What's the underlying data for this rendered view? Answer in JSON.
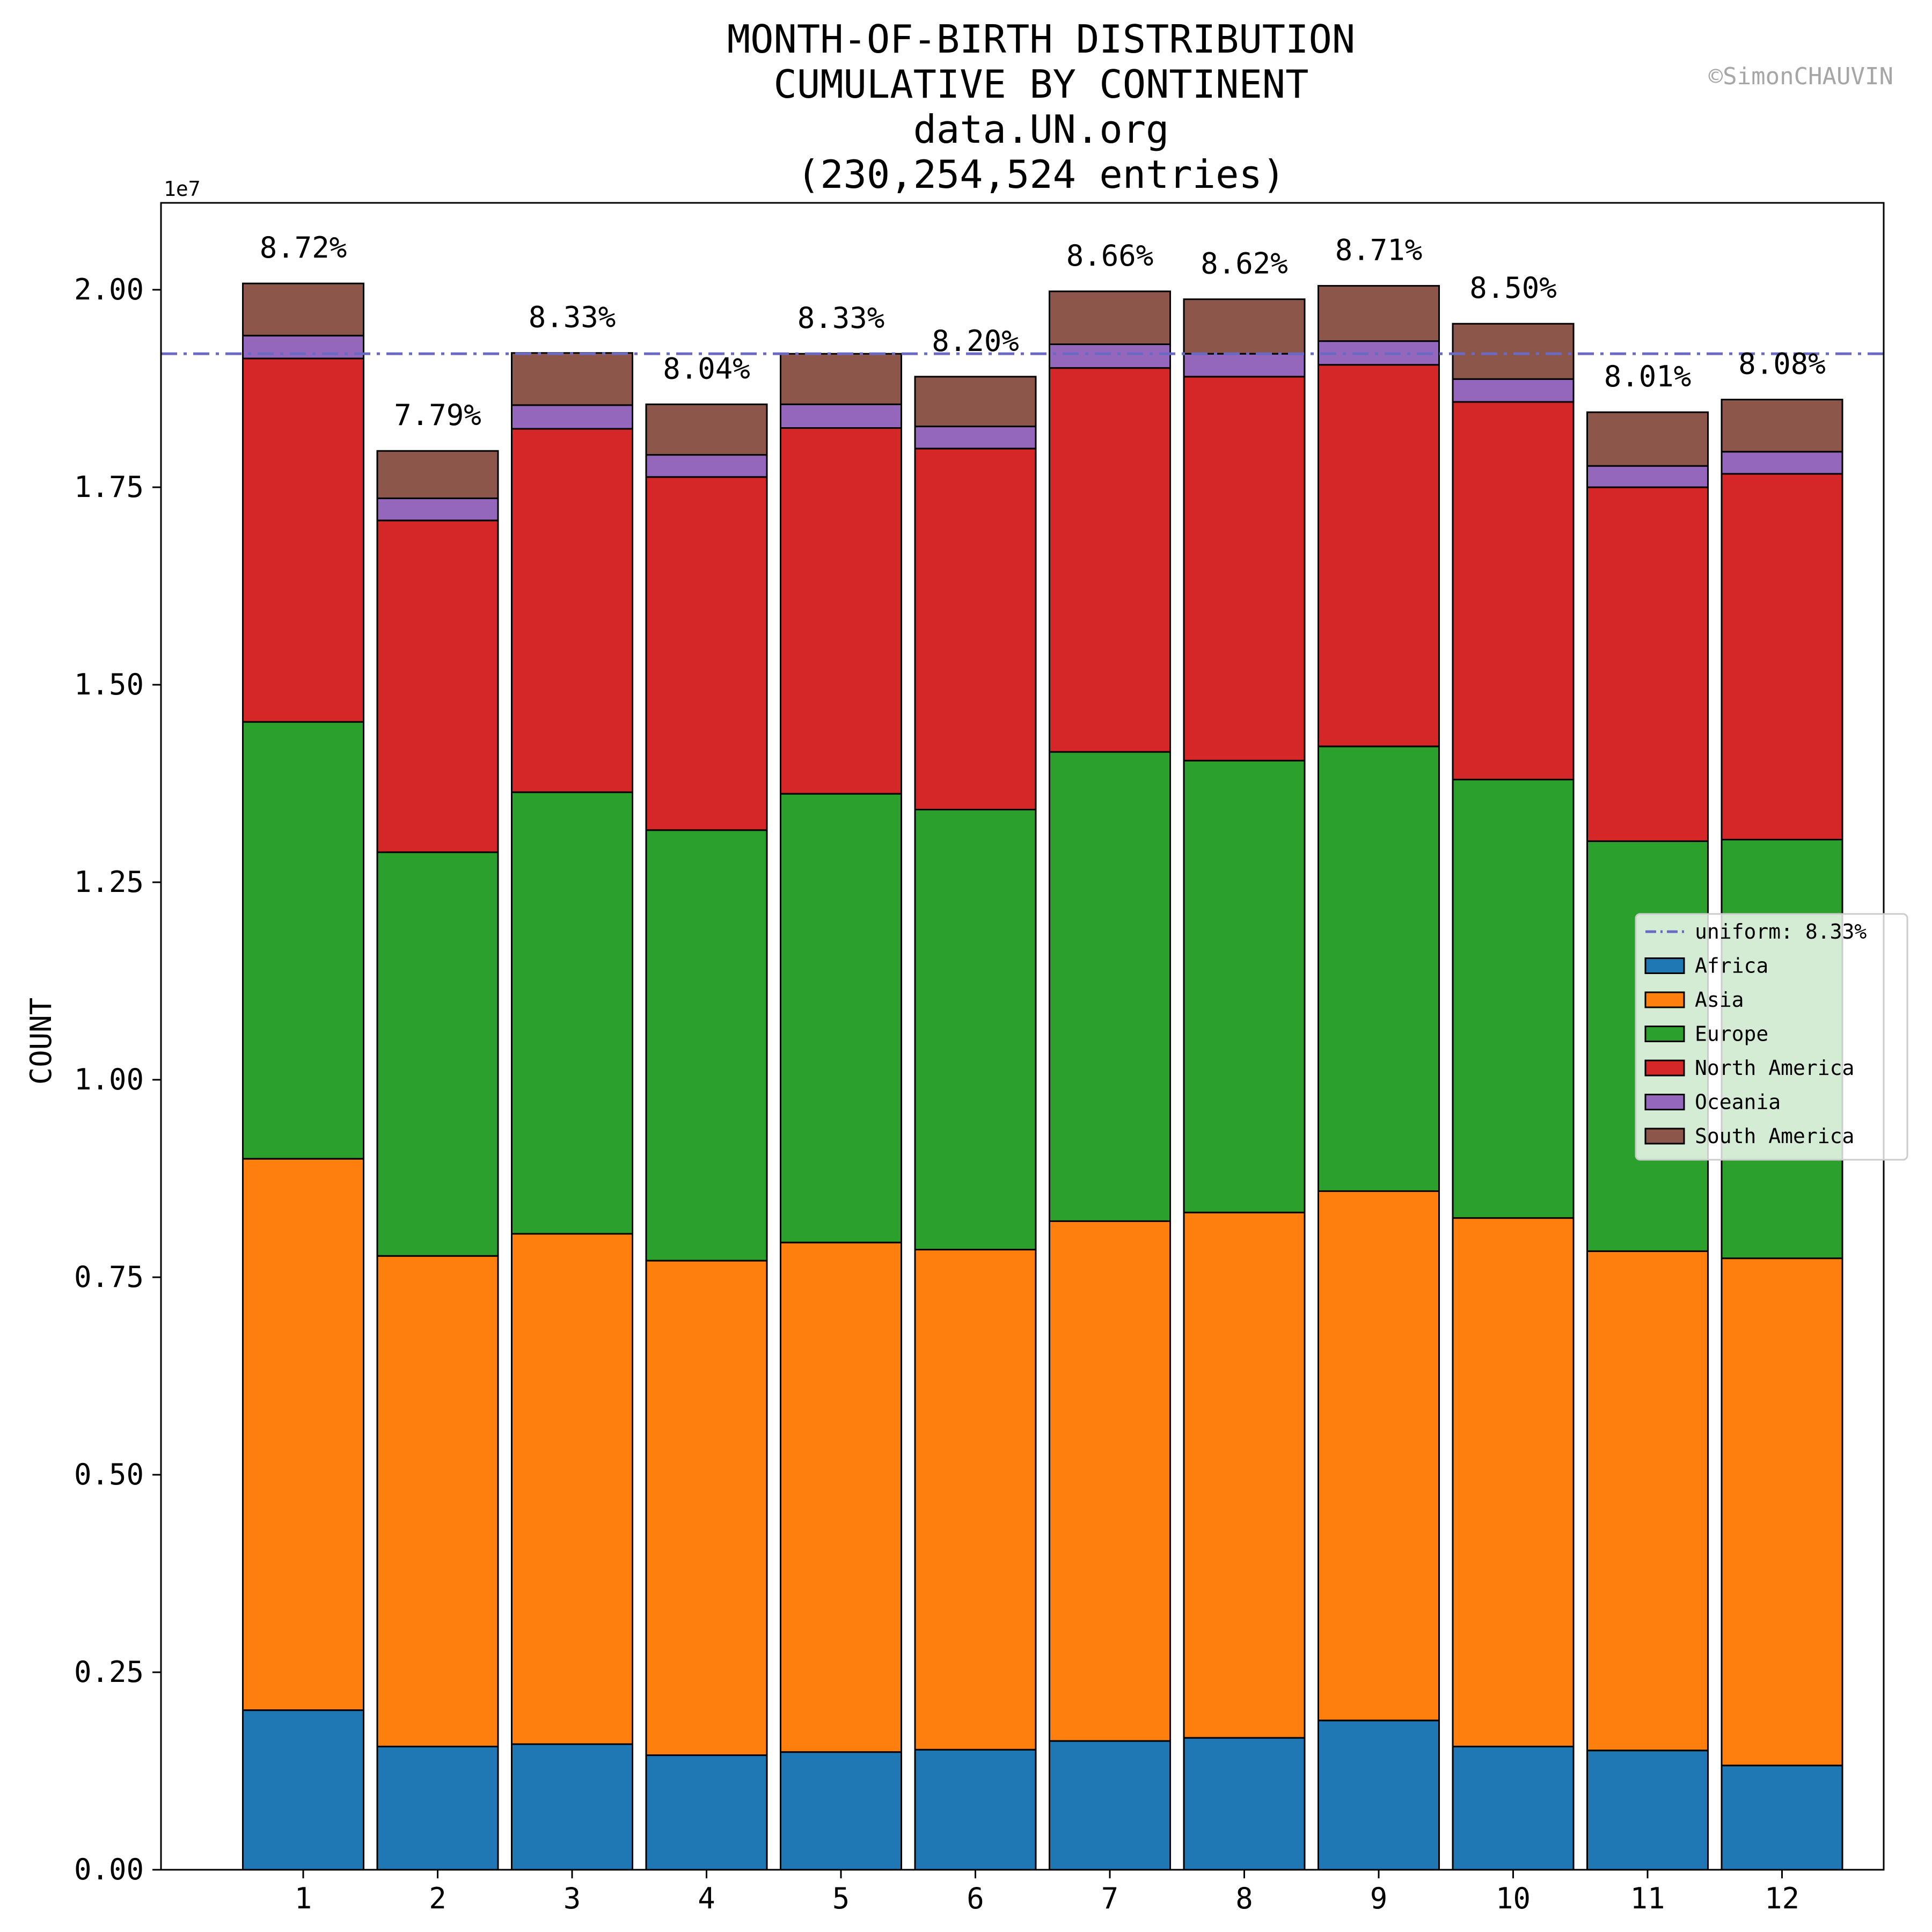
{
  "chart_data": {
    "type": "bar",
    "stacked": true,
    "title_lines": [
      "MONTH-OF-BIRTH DISTRIBUTION",
      "CUMULATIVE BY CONTINENT",
      "data.UN.org",
      "(230,254,524 entries)"
    ],
    "credit": "©SimonCHAUVIN",
    "ylabel": "COUNT",
    "xlabel": "",
    "y_offset_label": "1e7",
    "ylim": [
      0,
      21100000
    ],
    "yticks": [
      0,
      2500000,
      5000000,
      7500000,
      10000000,
      12500000,
      15000000,
      17500000,
      20000000
    ],
    "ytick_labels": [
      "0.00",
      "0.25",
      "0.50",
      "0.75",
      "1.00",
      "1.25",
      "1.50",
      "1.75",
      "2.00"
    ],
    "categories": [
      "1",
      "2",
      "3",
      "4",
      "5",
      "6",
      "7",
      "8",
      "9",
      "10",
      "11",
      "12"
    ],
    "series": [
      {
        "name": "Africa",
        "color": "#1f77b4",
        "values": [
          2020000,
          1560000,
          1590000,
          1450000,
          1490000,
          1520000,
          1630000,
          1670000,
          1890000,
          1560000,
          1510000,
          1320000
        ]
      },
      {
        "name": "Asia",
        "color": "#ff7f0e",
        "values": [
          6980000,
          6210000,
          6460000,
          6260000,
          6450000,
          6330000,
          6580000,
          6650000,
          6700000,
          6690000,
          6320000,
          6420000
        ]
      },
      {
        "name": "Europe",
        "color": "#2ca02c",
        "values": [
          5530000,
          5110000,
          5590000,
          5450000,
          5680000,
          5570000,
          5940000,
          5720000,
          5630000,
          5550000,
          5190000,
          5300000
        ]
      },
      {
        "name": "North America",
        "color": "#d62728",
        "values": [
          4600000,
          4200000,
          4600000,
          4470000,
          4630000,
          4570000,
          4860000,
          4860000,
          4830000,
          4780000,
          4480000,
          4630000
        ]
      },
      {
        "name": "Oceania",
        "color": "#9467bd",
        "values": [
          290000,
          280000,
          300000,
          280000,
          300000,
          280000,
          300000,
          290000,
          300000,
          290000,
          270000,
          280000
        ]
      },
      {
        "name": "South America",
        "color": "#8c564b",
        "values": [
          660000,
          600000,
          660000,
          640000,
          640000,
          630000,
          670000,
          690000,
          700000,
          700000,
          680000,
          660000
        ]
      }
    ],
    "totals_pct_labels": [
      "8.72%",
      "7.79%",
      "8.33%",
      "8.04%",
      "8.33%",
      "8.20%",
      "8.66%",
      "8.62%",
      "8.71%",
      "8.50%",
      "8.01%",
      "8.08%"
    ],
    "uniform_line": {
      "label": "uniform: 8.33%",
      "value": 19190000,
      "color": "#6a6ac4"
    },
    "legend_position": "center-right",
    "grid": false
  }
}
